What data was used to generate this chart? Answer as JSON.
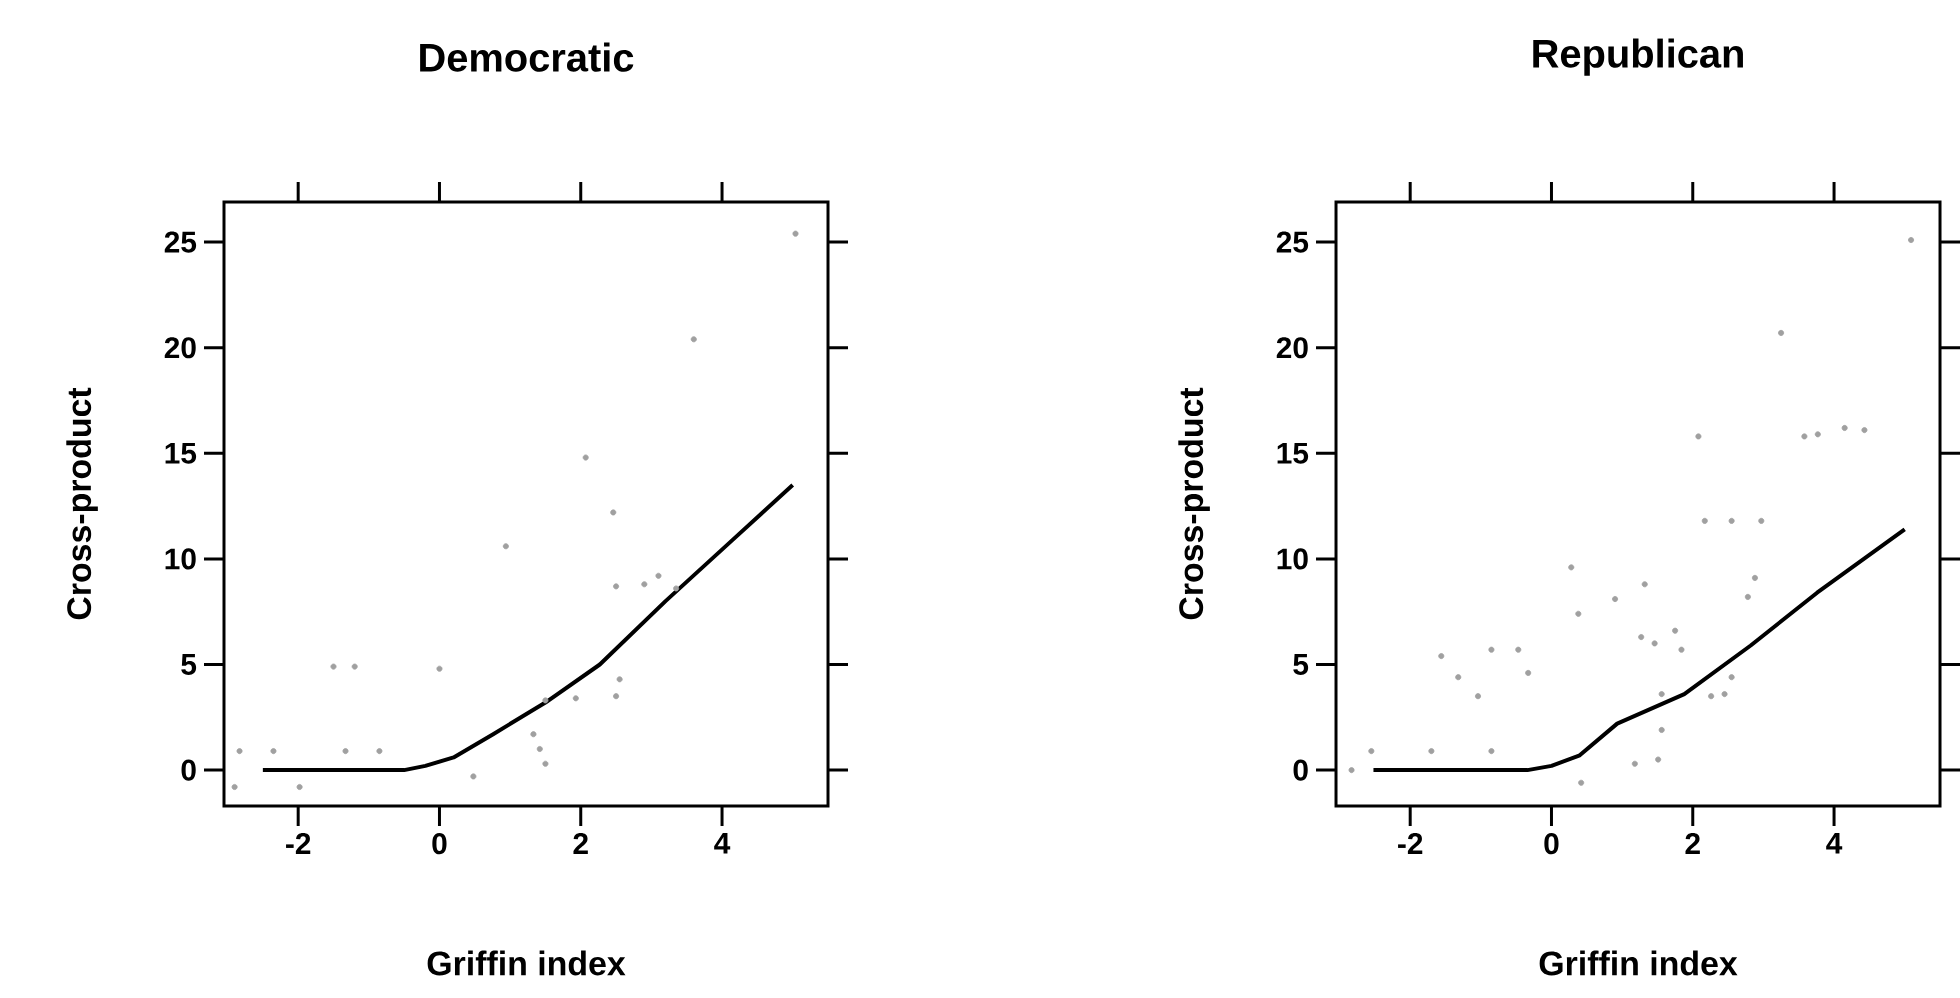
{
  "chart_data": [
    {
      "type": "scatter",
      "title": "Democratic",
      "xlabel": "Griffin index",
      "ylabel": "Cross-product",
      "xlim": [
        -3.05,
        5.5
      ],
      "ylim": [
        -1.7,
        26.9
      ],
      "xticks": [
        -2,
        0,
        2,
        4
      ],
      "yticks": [
        0,
        5,
        10,
        15,
        20,
        25
      ],
      "series": [
        {
          "color": "#a0a0a0",
          "marker": "circle",
          "x": [
            5.04,
            3.6,
            2.07,
            2.46,
            0.94,
            2.5,
            2.9,
            3.1,
            3.35,
            -1.5,
            -1.2,
            0.0,
            1.5,
            1.93,
            2.55,
            2.5,
            1.33,
            1.42,
            1.5,
            0.48,
            -2.83,
            -2.35,
            -1.33,
            -0.85,
            -2.9,
            -1.98
          ],
          "values": [
            25.4,
            20.4,
            14.8,
            12.2,
            10.6,
            8.7,
            8.8,
            9.2,
            8.6,
            4.9,
            4.9,
            4.8,
            3.3,
            3.4,
            4.3,
            3.5,
            1.7,
            1.0,
            0.3,
            -0.3,
            0.9,
            0.9,
            0.9,
            0.9,
            -0.8,
            -0.8
          ]
        },
        {
          "type": "line",
          "color": "#000000",
          "marker": "none",
          "line_style": "solid",
          "x": [
            -2.5,
            -1.0,
            -0.5,
            -0.2,
            0.2,
            0.76,
            1.5,
            2.27,
            3.2,
            4.15,
            5.0
          ],
          "values": [
            0,
            0,
            0,
            0.2,
            0.6,
            1.7,
            3.2,
            5.0,
            8.0,
            10.9,
            13.5
          ]
        }
      ]
    },
    {
      "type": "scatter",
      "title": "Republican",
      "xlabel": "Griffin index",
      "ylabel": "Cross-product",
      "xlim": [
        -3.05,
        5.5
      ],
      "ylim": [
        -1.7,
        26.9
      ],
      "xticks": [
        -2,
        0,
        2,
        4
      ],
      "yticks": [
        0,
        5,
        10,
        15,
        20,
        25
      ],
      "series": [
        {
          "color": "#a0a0a0",
          "marker": "circle",
          "x": [
            5.09,
            3.25,
            3.77,
            4.15,
            4.43,
            3.58,
            2.08,
            2.17,
            2.55,
            2.97,
            0.28,
            0.38,
            0.9,
            1.32,
            2.88,
            2.78,
            1.27,
            1.46,
            1.75,
            1.84,
            -1.56,
            -1.32,
            -1.04,
            -0.85,
            -0.47,
            -0.33,
            1.56,
            2.26,
            2.55,
            2.45,
            1.18,
            1.51,
            1.56,
            0.42,
            -2.55,
            -1.7,
            -0.85,
            -2.83
          ],
          "values": [
            25.1,
            20.7,
            15.9,
            16.2,
            16.1,
            15.8,
            15.8,
            11.8,
            11.8,
            11.8,
            9.6,
            7.4,
            8.1,
            8.8,
            9.1,
            8.2,
            6.3,
            6.0,
            6.6,
            5.7,
            5.4,
            4.4,
            3.5,
            5.7,
            5.7,
            4.6,
            3.6,
            3.5,
            4.4,
            3.6,
            0.3,
            0.5,
            1.9,
            -0.6,
            0.9,
            0.9,
            0.9,
            0.0
          ]
        },
        {
          "type": "line",
          "color": "#000000",
          "marker": "none",
          "line_style": "solid",
          "x": [
            -2.52,
            -1.0,
            -0.34,
            0.0,
            0.4,
            0.93,
            1.88,
            2.82,
            3.76,
            5.0
          ],
          "values": [
            0,
            0,
            0,
            0.2,
            0.7,
            2.2,
            3.6,
            5.9,
            8.4,
            11.4
          ]
        }
      ]
    }
  ]
}
